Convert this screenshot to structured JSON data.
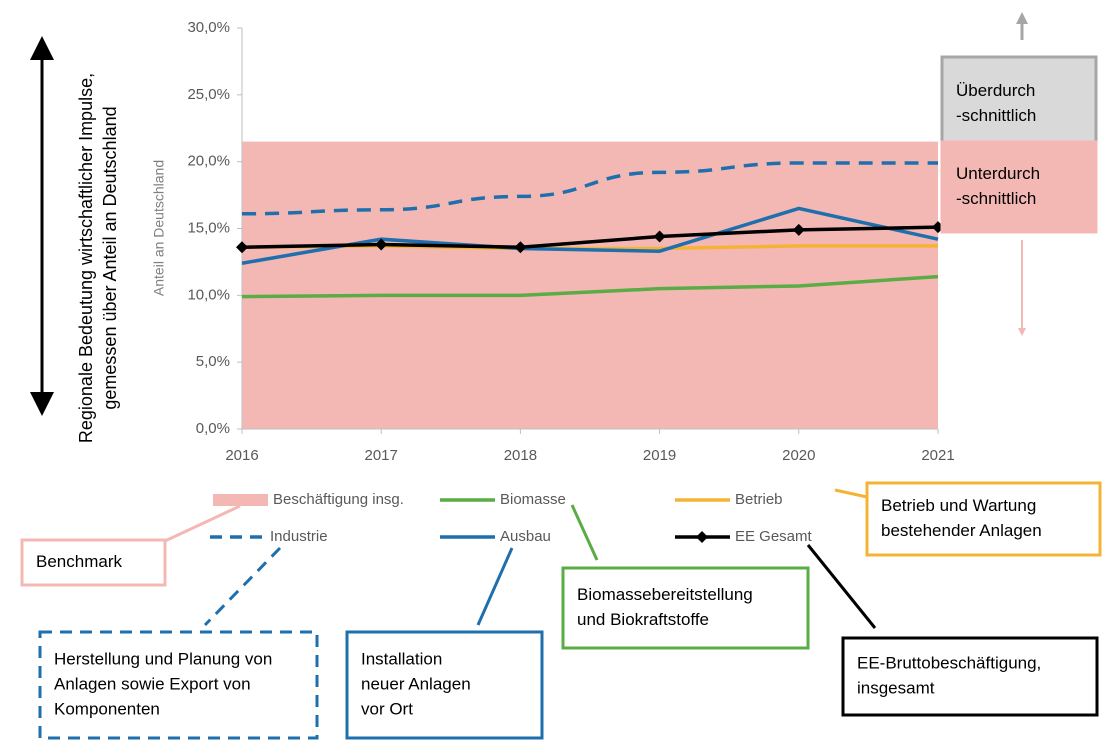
{
  "chart_data": {
    "type": "line",
    "ylabel": "Anteil an Deutschland",
    "side_label": [
      "Regionale Bedeutung wirtschaftlicher Impulse,",
      "gemessen über Anteil an Deutschland"
    ],
    "categories": [
      "2016",
      "2017",
      "2018",
      "2019",
      "2020",
      "2021"
    ],
    "ylim": [
      0,
      30
    ],
    "yticks": [
      {
        "value": 0,
        "label": "0,0%"
      },
      {
        "value": 5,
        "label": "5,0%"
      },
      {
        "value": 10,
        "label": "10,0%"
      },
      {
        "value": 15,
        "label": "15,0%"
      },
      {
        "value": 20,
        "label": "20,0%"
      },
      {
        "value": 25,
        "label": "25,0%"
      },
      {
        "value": 30,
        "label": "30,0%"
      }
    ],
    "series": [
      {
        "name": "Beschäftigung insg.",
        "color": "#f4b8b4",
        "kind": "area",
        "values": [
          21.5,
          21.5,
          21.5,
          21.5,
          21.5,
          21.5
        ]
      },
      {
        "name": "Biomasse",
        "color": "#5aac45",
        "values": [
          9.9,
          10.0,
          10.0,
          10.5,
          10.7,
          11.4
        ]
      },
      {
        "name": "Betrieb",
        "color": "#f5b335",
        "values": [
          13.6,
          13.7,
          13.5,
          13.5,
          13.7,
          13.7
        ]
      },
      {
        "name": "Industrie",
        "color": "#1f6fad",
        "style": "dashed",
        "values": [
          16.1,
          16.4,
          17.4,
          19.2,
          19.9,
          19.9
        ]
      },
      {
        "name": "Ausbau",
        "color": "#1f6fad",
        "values": [
          12.4,
          14.2,
          13.5,
          13.3,
          16.5,
          14.2
        ]
      },
      {
        "name": "EE Gesamt",
        "color": "#000000",
        "marker": "diamond",
        "values": [
          13.6,
          13.8,
          13.6,
          14.4,
          14.9,
          15.1
        ]
      }
    ],
    "annotations": [
      {
        "lines": [
          "Überdurch",
          "-schnittlich"
        ]
      },
      {
        "lines": [
          "Unterdurch",
          "-schnittlich"
        ]
      },
      {
        "lines": [
          "Benchmark"
        ]
      },
      {
        "lines": [
          "Betrieb und Wartung",
          "bestehender Anlagen"
        ]
      },
      {
        "lines": [
          "Biomassebereitstellung",
          "und Biokraftstoffe"
        ]
      },
      {
        "lines": [
          "Herstellung und Planung von",
          "Anlagen sowie Export von",
          "Komponenten"
        ]
      },
      {
        "lines": [
          "Installation",
          "neuer Anlagen",
          "vor Ort"
        ]
      },
      {
        "lines": [
          "EE-Bruttobeschäftigung,",
          "insgesamt"
        ]
      }
    ]
  }
}
